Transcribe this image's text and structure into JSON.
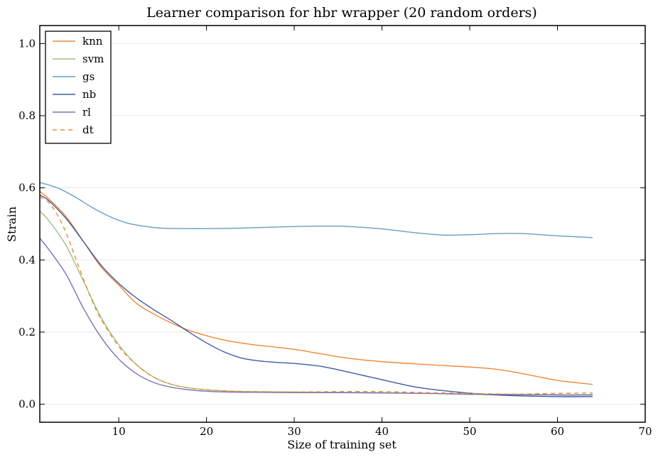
{
  "chart_data": {
    "type": "line",
    "title": "Learner comparison for hbr wrapper (20 random orders)",
    "xlabel": "Size of training set",
    "ylabel": "Strain",
    "xlim": [
      1,
      70
    ],
    "ylim": [
      -0.05,
      1.05
    ],
    "xticks": [
      10,
      20,
      30,
      40,
      50,
      60,
      70
    ],
    "yticks": [
      0.0,
      0.2,
      0.4,
      0.6,
      0.8,
      1.0
    ],
    "xtick_labels": [
      "10",
      "20",
      "30",
      "40",
      "50",
      "60",
      "70"
    ],
    "ytick_labels": [
      "0.0",
      "0.2",
      "0.4",
      "0.6",
      "0.8",
      "1.0"
    ],
    "grid": "horizontal",
    "legend_position": "top-left",
    "series": [
      {
        "name": "knn",
        "color": "#f0883a",
        "dash": "solid",
        "x": [
          1,
          2,
          4,
          6,
          8,
          10,
          12,
          14,
          16,
          18,
          20,
          22,
          25,
          28,
          30,
          33,
          36,
          40,
          45,
          50,
          53,
          56,
          60,
          64
        ],
        "y": [
          0.59,
          0.57,
          0.52,
          0.45,
          0.38,
          0.33,
          0.28,
          0.25,
          0.225,
          0.205,
          0.19,
          0.178,
          0.166,
          0.158,
          0.152,
          0.14,
          0.128,
          0.118,
          0.11,
          0.103,
          0.097,
          0.085,
          0.066,
          0.055
        ]
      },
      {
        "name": "svm",
        "color": "#9cc17f",
        "dash": "solid",
        "x": [
          1,
          2,
          4,
          6,
          8,
          10,
          12,
          14,
          16,
          18,
          20,
          22,
          25,
          30,
          35,
          40,
          45,
          50,
          55,
          60,
          64
        ],
        "y": [
          0.535,
          0.51,
          0.44,
          0.34,
          0.24,
          0.165,
          0.11,
          0.075,
          0.055,
          0.045,
          0.04,
          0.037,
          0.035,
          0.034,
          0.033,
          0.032,
          0.03,
          0.027,
          0.026,
          0.025,
          0.025
        ]
      },
      {
        "name": "gs",
        "color": "#6a9ec5",
        "dash": "solid",
        "x": [
          1,
          3,
          5,
          7,
          9,
          11,
          13,
          15,
          18,
          21,
          25,
          29,
          33,
          36,
          40,
          44,
          47,
          50,
          53,
          56,
          60,
          64
        ],
        "y": [
          0.615,
          0.6,
          0.575,
          0.545,
          0.52,
          0.502,
          0.493,
          0.488,
          0.487,
          0.487,
          0.489,
          0.492,
          0.494,
          0.493,
          0.486,
          0.475,
          0.469,
          0.47,
          0.473,
          0.473,
          0.467,
          0.462
        ]
      },
      {
        "name": "nb",
        "color": "#3f5aa8",
        "dash": "solid",
        "x": [
          1,
          2,
          4,
          6,
          8,
          10,
          12,
          14,
          16,
          18,
          20,
          22,
          24,
          26,
          28,
          30,
          33,
          36,
          40,
          44,
          48,
          52,
          56,
          60,
          64
        ],
        "y": [
          0.58,
          0.565,
          0.515,
          0.45,
          0.385,
          0.335,
          0.295,
          0.262,
          0.232,
          0.2,
          0.17,
          0.145,
          0.128,
          0.12,
          0.116,
          0.113,
          0.105,
          0.09,
          0.068,
          0.047,
          0.035,
          0.027,
          0.023,
          0.021,
          0.021
        ]
      },
      {
        "name": "rl",
        "color": "#7b72b3",
        "dash": "solid",
        "x": [
          1,
          2,
          4,
          6,
          8,
          10,
          12,
          14,
          16,
          18,
          20,
          22,
          25,
          30,
          35,
          40,
          45,
          50,
          55,
          60,
          64
        ],
        "y": [
          0.46,
          0.43,
          0.36,
          0.265,
          0.185,
          0.125,
          0.085,
          0.06,
          0.047,
          0.04,
          0.036,
          0.034,
          0.033,
          0.032,
          0.032,
          0.031,
          0.03,
          0.028,
          0.027,
          0.026,
          0.026
        ]
      },
      {
        "name": "dt",
        "color": "#f0883a",
        "dash": "dashed",
        "x": [
          1,
          2,
          3,
          4,
          5,
          6,
          7,
          8,
          10,
          12,
          14,
          16,
          18,
          20,
          22,
          25,
          30,
          35,
          40,
          45,
          50,
          55,
          60,
          64
        ],
        "y": [
          0.575,
          0.56,
          0.525,
          0.475,
          0.41,
          0.345,
          0.285,
          0.235,
          0.16,
          0.11,
          0.075,
          0.055,
          0.045,
          0.04,
          0.037,
          0.035,
          0.034,
          0.035,
          0.035,
          0.032,
          0.03,
          0.028,
          0.03,
          0.031
        ]
      }
    ]
  }
}
